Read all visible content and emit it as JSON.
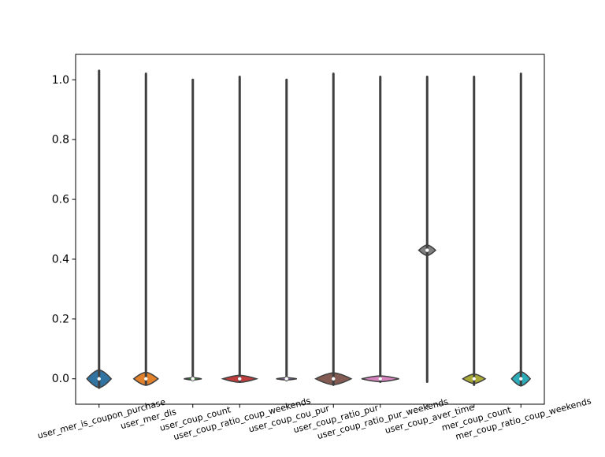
{
  "chart_data": {
    "type": "violin",
    "title": "",
    "xlabel": "",
    "ylabel": "",
    "ylim": [
      -0.085,
      1.085
    ],
    "yticks": [
      0.0,
      0.2,
      0.4,
      0.6,
      0.8,
      1.0
    ],
    "ytick_labels": [
      "0.0",
      "0.2",
      "0.4",
      "0.6",
      "0.8",
      "1.0"
    ],
    "grid": false,
    "categories": [
      "user_mer_is_coupon_purchase",
      "user_mer_dis",
      "user_coup_count",
      "user_coup_ratio_coup_weekends",
      "user_coup_cou_pur",
      "user_coup_ratio_pur",
      "user_coup_ratio_pur_weekends",
      "user_coup_aver_time",
      "mer_coup_count",
      "mer_coup_ratio_coup_weekends"
    ],
    "series": [
      {
        "fill": "#3274a1",
        "min": -0.03,
        "max": 1.03,
        "median": 0.0,
        "body_center": 0.0,
        "body_halfwidth": 0.26,
        "body_halfheight": 0.03
      },
      {
        "fill": "#e1812c",
        "min": -0.01,
        "max": 1.02,
        "median": 0.0,
        "body_center": 0.0,
        "body_halfwidth": 0.26,
        "body_halfheight": 0.022
      },
      {
        "fill": "#3a923a",
        "min": 0.0,
        "max": 1.0,
        "median": 0.0,
        "body_center": 0.0,
        "body_halfwidth": 0.19,
        "body_halfheight": 0.004
      },
      {
        "fill": "#c03d3e",
        "min": -0.01,
        "max": 1.01,
        "median": 0.0,
        "body_center": 0.0,
        "body_halfwidth": 0.36,
        "body_halfheight": 0.012
      },
      {
        "fill": "#9372b2",
        "min": -0.005,
        "max": 1.0,
        "median": 0.0,
        "body_center": 0.0,
        "body_halfwidth": 0.22,
        "body_halfheight": 0.004
      },
      {
        "fill": "#845b53",
        "min": -0.02,
        "max": 1.02,
        "median": 0.0,
        "body_center": 0.0,
        "body_halfwidth": 0.38,
        "body_halfheight": 0.02
      },
      {
        "fill": "#d684bd",
        "min": -0.01,
        "max": 1.01,
        "median": 0.0,
        "body_center": 0.0,
        "body_halfwidth": 0.4,
        "body_halfheight": 0.01
      },
      {
        "fill": "#7f7f7f",
        "min": -0.01,
        "max": 1.01,
        "median": 0.43,
        "body_center": 0.43,
        "body_halfwidth": 0.18,
        "body_halfheight": 0.018
      },
      {
        "fill": "#a9aa35",
        "min": -0.02,
        "max": 1.01,
        "median": 0.0,
        "body_center": 0.0,
        "body_halfwidth": 0.24,
        "body_halfheight": 0.016
      },
      {
        "fill": "#2eabb8",
        "min": -0.02,
        "max": 1.02,
        "median": 0.0,
        "body_center": 0.0,
        "body_halfwidth": 0.2,
        "body_halfheight": 0.024
      }
    ]
  }
}
